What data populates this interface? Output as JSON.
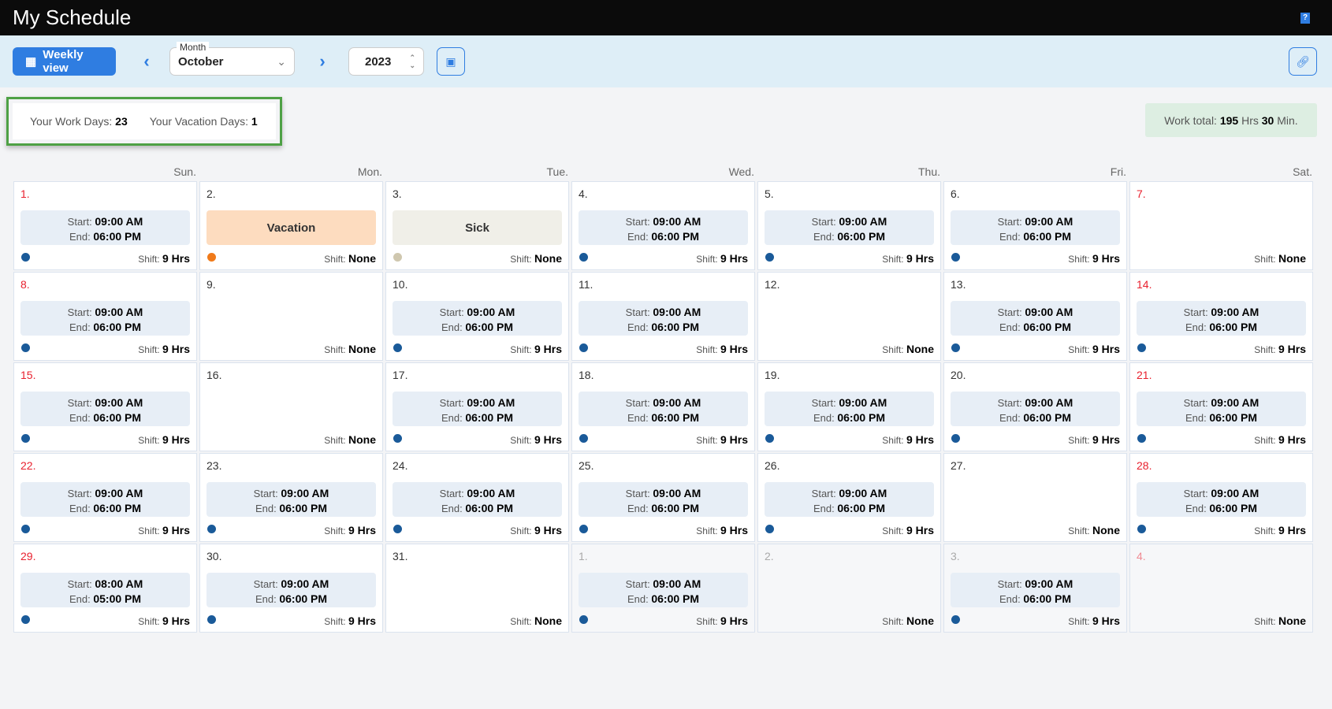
{
  "header": {
    "title": "My Schedule",
    "help_icon": "help-book-icon"
  },
  "toolbar": {
    "weekly_view_label": "Weekly view",
    "month_label": "Month",
    "month_value": "October",
    "year_value": "2023"
  },
  "summary": {
    "work_days_label": "Your Work Days:",
    "work_days": "23",
    "vacation_days_label": "Your Vacation Days:",
    "vacation_days": "1"
  },
  "total": {
    "label": "Work total:",
    "hours": "195",
    "hrs_unit": "Hrs",
    "minutes": "30",
    "min_unit": "Min."
  },
  "weekdays": [
    "Sun.",
    "Mon.",
    "Tue.",
    "Wed.",
    "Thu.",
    "Fri.",
    "Sat."
  ],
  "labels": {
    "start": "Start:",
    "end": "End:",
    "shift": "Shift:"
  },
  "colors": {
    "work": "#1a5a99",
    "vacation": "#f07a1a",
    "vacation_bg": "#fddcbf",
    "sick": "#cfc7af",
    "sick_bg": "#f0efe8",
    "accent": "#2f7de1"
  },
  "days": [
    {
      "n": "1.",
      "red": true,
      "start": "09:00 AM",
      "end": "06:00 PM",
      "shift": "9 Hrs"
    },
    {
      "n": "2.",
      "type": "vacation",
      "label": "Vacation",
      "shift": "None"
    },
    {
      "n": "3.",
      "type": "sick",
      "label": "Sick",
      "shift": "None"
    },
    {
      "n": "4.",
      "start": "09:00 AM",
      "end": "06:00 PM",
      "shift": "9 Hrs"
    },
    {
      "n": "5.",
      "start": "09:00 AM",
      "end": "06:00 PM",
      "shift": "9 Hrs"
    },
    {
      "n": "6.",
      "start": "09:00 AM",
      "end": "06:00 PM",
      "shift": "9 Hrs"
    },
    {
      "n": "7.",
      "red": true,
      "shift": "None"
    },
    {
      "n": "8.",
      "red": true,
      "start": "09:00 AM",
      "end": "06:00 PM",
      "shift": "9 Hrs"
    },
    {
      "n": "9.",
      "shift": "None"
    },
    {
      "n": "10.",
      "start": "09:00 AM",
      "end": "06:00 PM",
      "shift": "9 Hrs"
    },
    {
      "n": "11.",
      "start": "09:00 AM",
      "end": "06:00 PM",
      "shift": "9 Hrs"
    },
    {
      "n": "12.",
      "shift": "None"
    },
    {
      "n": "13.",
      "start": "09:00 AM",
      "end": "06:00 PM",
      "shift": "9 Hrs"
    },
    {
      "n": "14.",
      "red": true,
      "start": "09:00 AM",
      "end": "06:00 PM",
      "shift": "9 Hrs"
    },
    {
      "n": "15.",
      "red": true,
      "start": "09:00 AM",
      "end": "06:00 PM",
      "shift": "9 Hrs"
    },
    {
      "n": "16.",
      "shift": "None"
    },
    {
      "n": "17.",
      "start": "09:00 AM",
      "end": "06:00 PM",
      "shift": "9 Hrs"
    },
    {
      "n": "18.",
      "start": "09:00 AM",
      "end": "06:00 PM",
      "shift": "9 Hrs"
    },
    {
      "n": "19.",
      "start": "09:00 AM",
      "end": "06:00 PM",
      "shift": "9 Hrs"
    },
    {
      "n": "20.",
      "start": "09:00 AM",
      "end": "06:00 PM",
      "shift": "9 Hrs"
    },
    {
      "n": "21.",
      "red": true,
      "start": "09:00 AM",
      "end": "06:00 PM",
      "shift": "9 Hrs"
    },
    {
      "n": "22.",
      "red": true,
      "start": "09:00 AM",
      "end": "06:00 PM",
      "shift": "9 Hrs"
    },
    {
      "n": "23.",
      "start": "09:00 AM",
      "end": "06:00 PM",
      "shift": "9 Hrs"
    },
    {
      "n": "24.",
      "start": "09:00 AM",
      "end": "06:00 PM",
      "shift": "9 Hrs"
    },
    {
      "n": "25.",
      "start": "09:00 AM",
      "end": "06:00 PM",
      "shift": "9 Hrs"
    },
    {
      "n": "26.",
      "start": "09:00 AM",
      "end": "06:00 PM",
      "shift": "9 Hrs"
    },
    {
      "n": "27.",
      "shift": "None"
    },
    {
      "n": "28.",
      "red": true,
      "start": "09:00 AM",
      "end": "06:00 PM",
      "shift": "9 Hrs"
    },
    {
      "n": "29.",
      "red": true,
      "start": "08:00 AM",
      "end": "05:00 PM",
      "shift": "9 Hrs"
    },
    {
      "n": "30.",
      "start": "09:00 AM",
      "end": "06:00 PM",
      "shift": "9 Hrs"
    },
    {
      "n": "31.",
      "shift": "None"
    },
    {
      "n": "1.",
      "other": true,
      "start": "09:00 AM",
      "end": "06:00 PM",
      "shift": "9 Hrs"
    },
    {
      "n": "2.",
      "other": true,
      "shift": "None"
    },
    {
      "n": "3.",
      "other": true,
      "start": "09:00 AM",
      "end": "06:00 PM",
      "shift": "9 Hrs"
    },
    {
      "n": "4.",
      "other": true,
      "red": true,
      "shift": "None"
    }
  ]
}
